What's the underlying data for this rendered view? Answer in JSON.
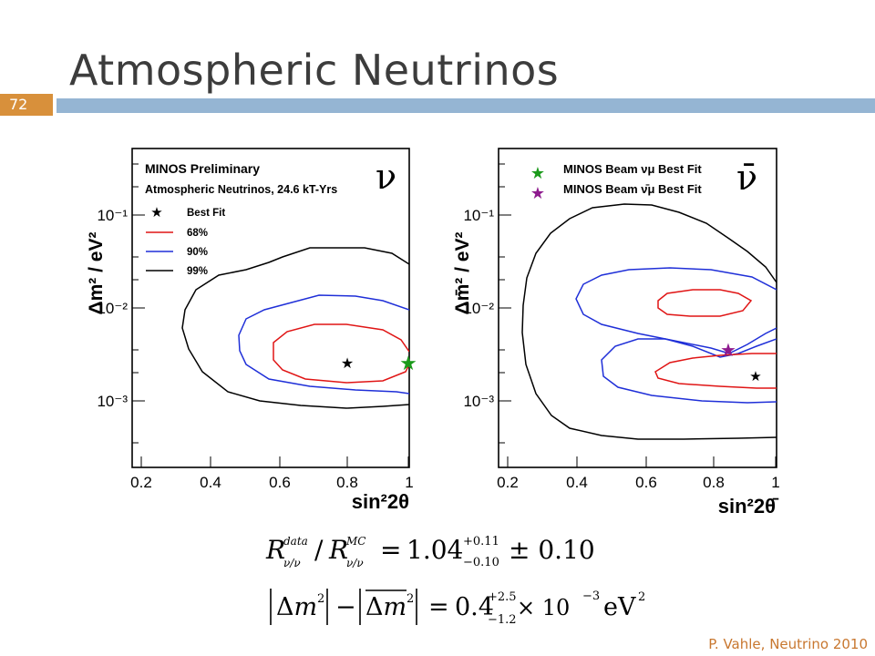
{
  "slide": {
    "title": "Atmospheric Neutrinos",
    "slide_number": "72",
    "footer": "P. Vahle, Neutrino 2010"
  },
  "colors": {
    "accent_bar": "#95b5d3",
    "number_box": "#d8903b",
    "footer_text": "#c8772f",
    "contour_68": "#e01515",
    "contour_90": "#1f2fd8",
    "contour_99": "#000000",
    "beam_nu_star": "#1a9a1a",
    "beam_nubar_star": "#8e1a8e"
  },
  "chart_data": [
    {
      "type": "contour",
      "symbol": "ν",
      "xlabel": "sin²2θ",
      "ylabel": "Δm² / eV²",
      "ylog": true,
      "xlim": [
        0.15,
        1.0
      ],
      "ylim": [
        0.0004,
        0.6
      ],
      "x_ticks": [
        "0.2",
        "0.4",
        "0.6",
        "0.8",
        "1"
      ],
      "y_ticks": [
        "10⁻¹",
        "10⁻²",
        "10⁻³"
      ],
      "legend": {
        "title": "MINOS Preliminary",
        "subtitle": "Atmospheric Neutrinos, 24.6 kT-Yrs",
        "entries": [
          "Best Fit",
          "68%",
          "90%",
          "99%"
        ]
      },
      "best_fit": {
        "x": 0.82,
        "y": 0.0025
      },
      "beam_best_fit": {
        "x": 1.0,
        "y": 0.0025
      }
    },
    {
      "type": "contour",
      "symbol": "ν̄",
      "xlabel": "sin²2θ̄",
      "ylabel": "Δm̄² / eV²",
      "ylog": true,
      "xlim": [
        0.15,
        1.0
      ],
      "ylim": [
        0.0004,
        0.6
      ],
      "x_ticks": [
        "0.2",
        "0.4",
        "0.6",
        "0.8",
        "1"
      ],
      "y_ticks": [
        "10⁻¹",
        "10⁻²",
        "10⁻³"
      ],
      "legend": {
        "entries": [
          "MINOS Beam νμ Best Fit",
          "MINOS Beam ν̄μ Best Fit"
        ]
      },
      "best_fit": {
        "x": 0.93,
        "y": 0.0018
      },
      "beam_best_fit": {
        "x": 0.86,
        "y": 0.0034
      }
    }
  ],
  "equations": {
    "ratio": {
      "lhs_sub_1": "ν/ν",
      "lhs_sup_1": "data",
      "lhs_sub_2": "ν/ν",
      "lhs_sup_2": "MC",
      "value": "1.04",
      "plus": "+0.11",
      "minus": "−0.10",
      "syst": "± 0.10"
    },
    "delta": {
      "value": "0.4",
      "plus": "+2.5",
      "minus": "−1.2",
      "times": "× 10",
      "exp": "−3",
      "unit": "eV"
    }
  }
}
